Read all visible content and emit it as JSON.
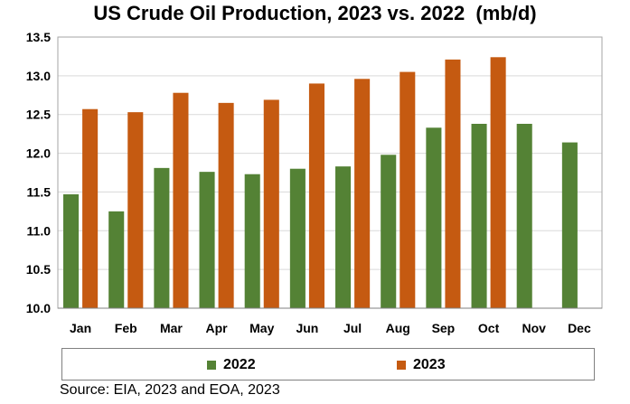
{
  "chart_data": {
    "type": "bar",
    "title": "US Crude Oil Production, 2023 vs. 2022  (mb/d)",
    "categories": [
      "Jan",
      "Feb",
      "Mar",
      "Apr",
      "May",
      "Jun",
      "Jul",
      "Aug",
      "Sep",
      "Oct",
      "Nov",
      "Dec"
    ],
    "series": [
      {
        "name": "2022",
        "color": "#548235",
        "values": [
          11.47,
          11.25,
          11.81,
          11.76,
          11.73,
          11.8,
          11.83,
          11.98,
          12.33,
          12.38,
          12.38,
          12.14
        ]
      },
      {
        "name": "2023",
        "color": "#C55A11",
        "values": [
          12.57,
          12.53,
          12.78,
          12.65,
          12.69,
          12.9,
          12.96,
          13.05,
          13.21,
          13.24,
          null,
          null
        ]
      }
    ],
    "ylim": [
      10.0,
      13.5
    ],
    "yticks": [
      "10.0",
      "10.5",
      "11.0",
      "11.5",
      "12.0",
      "12.5",
      "13.0",
      "13.5"
    ],
    "grid": true,
    "legend_position": "bottom"
  },
  "source": "Source: EIA, 2023 and EOA, 2023"
}
